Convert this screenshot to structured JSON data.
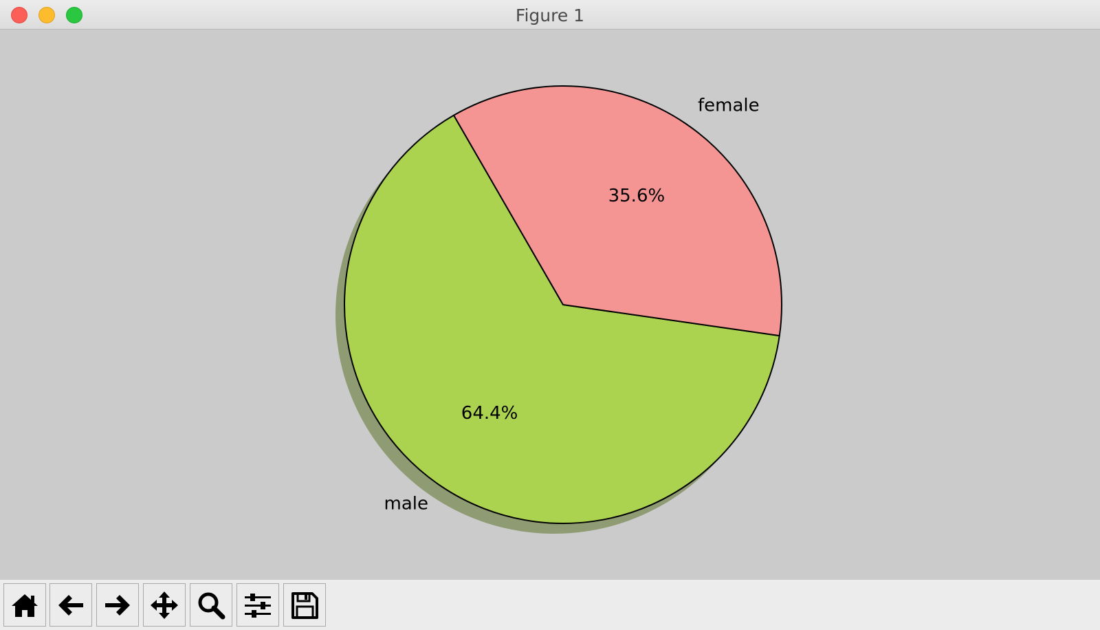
{
  "window": {
    "title": "Figure 1"
  },
  "toolbar": {
    "buttons": [
      {
        "name": "home-button",
        "icon": "home-icon"
      },
      {
        "name": "back-button",
        "icon": "arrow-left-icon"
      },
      {
        "name": "forward-button",
        "icon": "arrow-right-icon"
      },
      {
        "name": "pan-button",
        "icon": "move-icon"
      },
      {
        "name": "zoom-button",
        "icon": "magnifier-icon"
      },
      {
        "name": "configure-subplots-button",
        "icon": "sliders-icon"
      },
      {
        "name": "save-button",
        "icon": "floppy-disk-icon"
      }
    ]
  },
  "chart_data": {
    "type": "pie",
    "categories": [
      "male",
      "female"
    ],
    "values": [
      64.4,
      35.6
    ],
    "autopct": [
      "64.4%",
      "35.6%"
    ],
    "colors": [
      "#abd34f",
      "#f59593"
    ],
    "start_angle_deg": 120,
    "shadow": true,
    "edgecolor": "#000000",
    "legend": "none"
  }
}
